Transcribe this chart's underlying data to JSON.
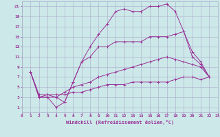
{
  "xlabel": "Windchill (Refroidissement éolien,°C)",
  "bg_color": "#cce8e8",
  "grid_color": "#aaaacc",
  "line_color": "#993399",
  "xlim": [
    0,
    23
  ],
  "ylim": [
    0,
    22
  ],
  "xticks": [
    0,
    1,
    2,
    3,
    4,
    5,
    6,
    7,
    8,
    9,
    10,
    11,
    12,
    13,
    14,
    15,
    16,
    17,
    18,
    19,
    20,
    21,
    22,
    23
  ],
  "yticks": [
    1,
    3,
    5,
    7,
    9,
    11,
    13,
    15,
    17,
    19,
    21
  ],
  "series": [
    {
      "x": [
        1,
        2,
        3,
        4,
        5,
        6,
        7,
        8,
        9,
        10,
        11,
        12,
        13,
        14,
        15,
        16,
        17,
        18,
        19,
        20,
        21,
        22
      ],
      "y": [
        8,
        3,
        3.5,
        3,
        2,
        6,
        10,
        13,
        15.5,
        17.5,
        20,
        20.5,
        20,
        20,
        21,
        21,
        21.5,
        20,
        16,
        12,
        10,
        7
      ]
    },
    {
      "x": [
        1,
        2,
        3,
        4,
        5,
        6,
        7,
        8,
        9,
        10,
        11,
        12,
        13,
        14,
        15,
        16,
        17,
        18,
        19,
        20,
        21,
        22
      ],
      "y": [
        8,
        3,
        3,
        1,
        2,
        6,
        10,
        11,
        13,
        13,
        14,
        14,
        14,
        14,
        15,
        15,
        15,
        15.5,
        16,
        11,
        9.5,
        7
      ]
    },
    {
      "x": [
        1,
        2,
        3,
        4,
        5,
        6,
        7,
        8,
        9,
        10,
        11,
        12,
        13,
        14,
        15,
        16,
        17,
        18,
        19,
        20,
        21,
        22
      ],
      "y": [
        8,
        3,
        3,
        3,
        4,
        5,
        5.5,
        6,
        7,
        7.5,
        8,
        8.5,
        9,
        9.5,
        10,
        10.5,
        11,
        10.5,
        10,
        9.5,
        9,
        7
      ]
    },
    {
      "x": [
        1,
        2,
        3,
        4,
        5,
        6,
        7,
        8,
        9,
        10,
        11,
        12,
        13,
        14,
        15,
        16,
        17,
        18,
        19,
        20,
        21,
        22
      ],
      "y": [
        8,
        3.5,
        3.5,
        3.5,
        3.5,
        4,
        4,
        4.5,
        5,
        5.5,
        5.5,
        5.5,
        6,
        6,
        6,
        6,
        6,
        6.5,
        7,
        7,
        6.5,
        7
      ]
    }
  ]
}
